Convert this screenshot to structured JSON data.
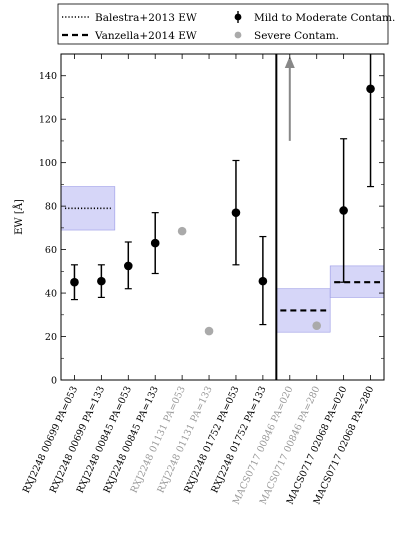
{
  "chart_data": {
    "type": "scatter",
    "ylabel": "EW [Å]",
    "ylim": [
      0,
      150
    ],
    "yticks": [
      0,
      20,
      40,
      60,
      80,
      100,
      120,
      140
    ],
    "categories": [
      "RXJ2248 00699 PA=053",
      "RXJ2248 00699 PA=133",
      "RXJ2248 00845 PA=053",
      "RXJ2248 00845 PA=133",
      "RXJ2248 01131 PA=053",
      "RXJ2248 01131 PA=133",
      "RXJ2248 01752 PA=053",
      "RXJ2248 01752 PA=133",
      "MACS0717 00846 PA=020",
      "MACS0717 00846 PA=280",
      "MACS0717 02068 PA=020",
      "MACS0717 02068 PA=280"
    ],
    "category_severe": [
      false,
      false,
      false,
      false,
      true,
      true,
      false,
      false,
      true,
      true,
      false,
      false
    ],
    "legend": {
      "position": "top",
      "entries": [
        "Balestra+2013 EW",
        "Vanzella+2014 EW",
        "Mild to Moderate Contam.",
        "Severe Contam."
      ]
    },
    "series": [
      {
        "name": "Mild to Moderate Contam.",
        "color": "#000000",
        "points": [
          {
            "category": 0,
            "y": 45,
            "err_low": 37,
            "err_high": 53
          },
          {
            "category": 1,
            "y": 45.5,
            "err_low": 38,
            "err_high": 53
          },
          {
            "category": 2,
            "y": 52.5,
            "err_low": 42,
            "err_high": 63.5
          },
          {
            "category": 3,
            "y": 63,
            "err_low": 49,
            "err_high": 77
          },
          {
            "category": 6,
            "y": 77,
            "err_low": 53,
            "err_high": 101
          },
          {
            "category": 7,
            "y": 45.5,
            "err_low": 25.5,
            "err_high": 66
          },
          {
            "category": 10,
            "y": 78,
            "err_low": 45,
            "err_high": 111
          },
          {
            "category": 11,
            "y": 134,
            "err_low": 89,
            "err_high": 150
          }
        ]
      },
      {
        "name": "Severe Contam.",
        "color": "#aaaaaa",
        "points": [
          {
            "category": 4,
            "y": 68.5
          },
          {
            "category": 5,
            "y": 22.5
          },
          {
            "category": 9,
            "y": 25
          }
        ]
      }
    ],
    "upper_limit_arrow": {
      "category": 8,
      "from": 110,
      "to": 150,
      "color": "#888888"
    },
    "reference_lines": [
      {
        "name": "Balestra+2013 EW",
        "style": "dotted",
        "value": 79,
        "band": [
          69,
          89
        ],
        "cat_span": [
          -0.5,
          1.5
        ]
      },
      {
        "name": "Vanzella+2014 EW",
        "style": "dashed",
        "value": 32,
        "band": [
          22,
          42
        ],
        "cat_span": [
          7.5,
          9.5
        ]
      },
      {
        "name": "Vanzella+2014 EW",
        "style": "dashed",
        "value": 45,
        "band": [
          38,
          52.5
        ],
        "cat_span": [
          9.5,
          11.5
        ]
      }
    ],
    "divider_after_category": 7,
    "band_color": "#c8c8f5",
    "label_black": "#000000",
    "label_gray": "#999999"
  }
}
